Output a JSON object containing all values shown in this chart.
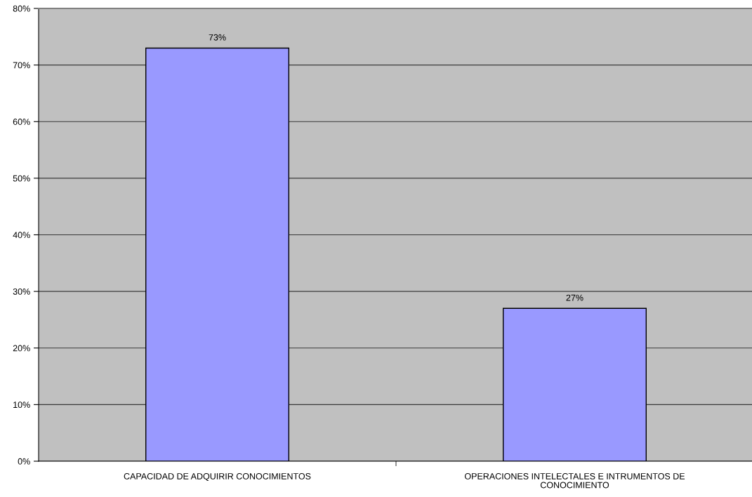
{
  "chart_data": {
    "type": "bar",
    "categories": [
      "CAPACIDAD DE ADQUIRIR CONOCIMIENTOS",
      "OPERACIONES INTELECTALES E INTRUMENTOS DE\nCONOCIMIENTO"
    ],
    "values": [
      73,
      27
    ],
    "color": "#9999ff",
    "value_labels": [
      "73%",
      "27%"
    ],
    "ylim": [
      0,
      80
    ],
    "yticks": [
      {
        "value": 0,
        "label": "0%"
      },
      {
        "value": 10,
        "label": "10%"
      },
      {
        "value": 20,
        "label": "20%"
      },
      {
        "value": 30,
        "label": "30%"
      },
      {
        "value": 40,
        "label": "40%"
      },
      {
        "value": 50,
        "label": "50%"
      },
      {
        "value": 60,
        "label": "60%"
      },
      {
        "value": 70,
        "label": "70%"
      },
      {
        "value": 80,
        "label": "80%"
      }
    ],
    "grid": "y"
  }
}
